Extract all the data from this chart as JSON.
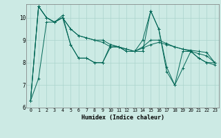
{
  "xlabel": "Humidex (Indice chaleur)",
  "bg_color": "#cceae4",
  "grid_color": "#aad4cc",
  "line_color": "#006655",
  "xlim": [
    -0.5,
    23.5
  ],
  "ylim": [
    6.0,
    10.6
  ],
  "yticks": [
    6,
    7,
    8,
    9,
    10
  ],
  "xticks": [
    0,
    1,
    2,
    3,
    4,
    5,
    6,
    7,
    8,
    9,
    10,
    11,
    12,
    13,
    14,
    15,
    16,
    17,
    18,
    19,
    20,
    21,
    22,
    23
  ],
  "series": [
    [
      6.3,
      10.5,
      10.0,
      9.8,
      10.1,
      8.8,
      8.2,
      8.2,
      8.0,
      8.0,
      8.8,
      8.7,
      8.5,
      8.5,
      9.0,
      10.3,
      9.5,
      7.8,
      7.0,
      8.5,
      8.5,
      8.2,
      8.0,
      8.0
    ],
    [
      6.3,
      10.5,
      10.0,
      9.8,
      10.0,
      9.5,
      9.2,
      9.1,
      9.0,
      9.0,
      8.8,
      8.7,
      8.6,
      8.5,
      8.7,
      9.0,
      9.0,
      8.85,
      8.7,
      8.6,
      8.55,
      8.5,
      8.45,
      8.0
    ],
    [
      6.3,
      10.5,
      10.0,
      9.8,
      10.0,
      9.5,
      9.2,
      9.1,
      9.0,
      8.9,
      8.7,
      8.7,
      8.6,
      8.5,
      8.65,
      8.8,
      8.9,
      8.8,
      8.7,
      8.6,
      8.5,
      8.4,
      8.3,
      8.0
    ],
    [
      6.3,
      7.3,
      9.8,
      9.8,
      10.0,
      8.8,
      8.2,
      8.2,
      8.0,
      8.0,
      8.7,
      8.7,
      8.5,
      8.5,
      8.5,
      10.3,
      9.5,
      7.6,
      7.0,
      7.75,
      8.5,
      8.2,
      8.0,
      7.9
    ]
  ]
}
